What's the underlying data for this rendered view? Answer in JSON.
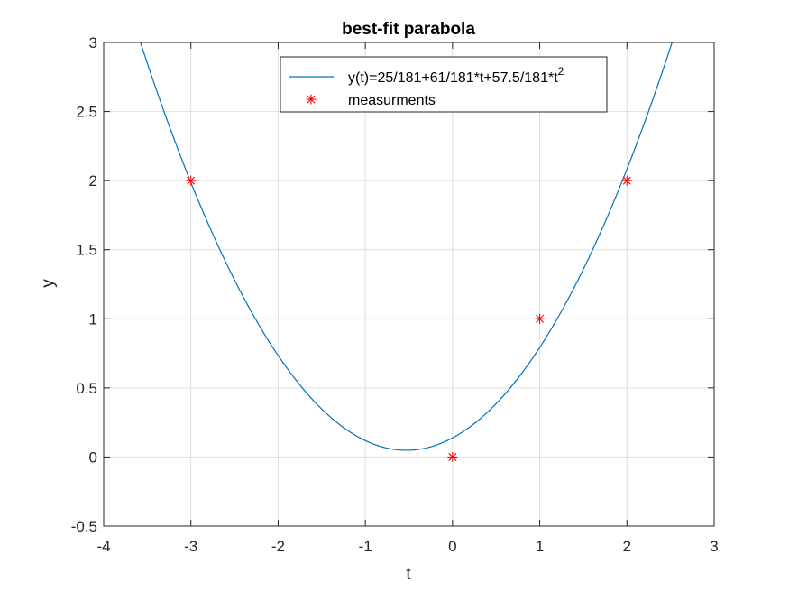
{
  "chart_data": {
    "type": "line",
    "title": "best-fit parabola",
    "xlabel": "t",
    "ylabel": "y",
    "xlim": [
      -4,
      3
    ],
    "ylim": [
      -0.5,
      3
    ],
    "xticks": [
      -4,
      -3,
      -2,
      -1,
      0,
      1,
      2,
      3
    ],
    "yticks": [
      -0.5,
      0,
      0.5,
      1,
      1.5,
      2,
      2.5,
      3
    ],
    "xtick_labels": [
      "-4",
      "-3",
      "-2",
      "-1",
      "0",
      "1",
      "2",
      "3"
    ],
    "ytick_labels": [
      "-0.5",
      "0",
      "0.5",
      "1",
      "1.5",
      "2",
      "2.5",
      "3"
    ],
    "grid": true,
    "legend_position": "top-right",
    "series": [
      {
        "name_main": "y(t)=25/181+61/181*t+57.5/181*t",
        "name_sup": "2",
        "kind": "line",
        "color": "#0072bd",
        "coefficients": [
          0.138122,
          0.337017,
          0.31768
        ]
      },
      {
        "name": "measurments",
        "kind": "scatter",
        "marker": "asterisk",
        "color": "#ff0000",
        "x": [
          -3,
          0,
          1,
          2
        ],
        "y": [
          2,
          0,
          1,
          2
        ]
      }
    ]
  }
}
